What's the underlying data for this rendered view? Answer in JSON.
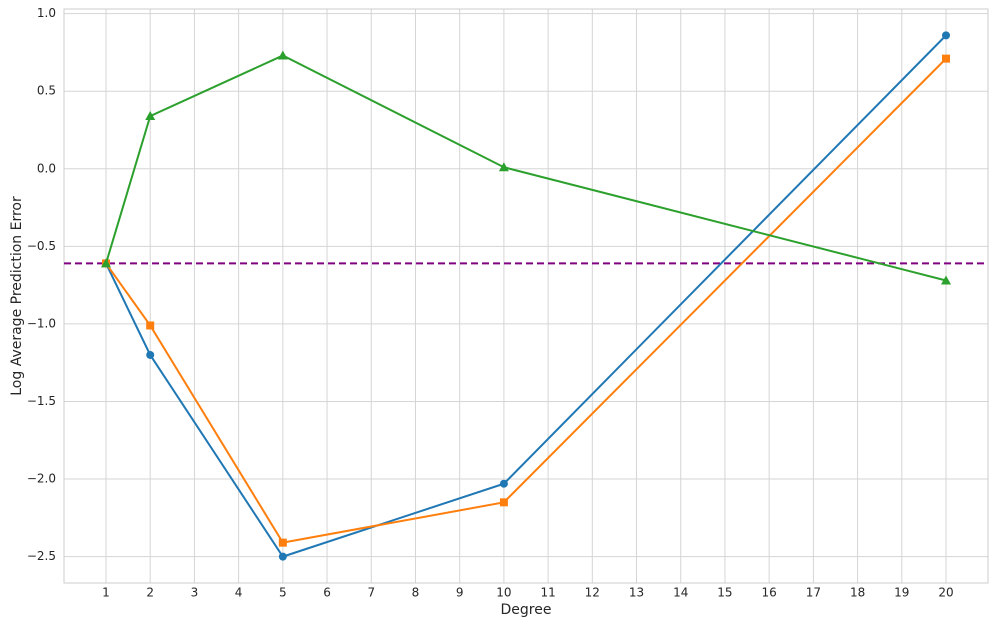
{
  "chart_data": {
    "type": "line",
    "x_label": "Degree",
    "y_label": "Log Average Prediction Error",
    "x": [
      1,
      2,
      5,
      10,
      20
    ],
    "series": [
      {
        "color": "#1f77b4",
        "marker": "circle",
        "values": [
          -0.61,
          -1.2,
          -2.5,
          -2.03,
          0.86
        ]
      },
      {
        "color": "#ff7f0e",
        "marker": "square",
        "values": [
          -0.61,
          -1.01,
          -2.41,
          -2.15,
          0.71
        ]
      },
      {
        "color": "#2ca02c",
        "marker": "triangle",
        "values": [
          -0.61,
          0.34,
          0.73,
          0.01,
          -0.72
        ]
      }
    ],
    "hline": {
      "value": -0.61,
      "color": "#800080",
      "style": "dashed"
    },
    "xlim": [
      0.05,
      20.95
    ],
    "xticks": [
      1,
      2,
      3,
      4,
      5,
      6,
      7,
      8,
      9,
      10,
      11,
      12,
      13,
      14,
      15,
      16,
      17,
      18,
      19,
      20
    ],
    "ylim": [
      -2.67,
      1.03
    ],
    "yticks": [
      {
        "value": -2.5,
        "label": "−2.5"
      },
      {
        "value": -2,
        "label": "−2.0"
      },
      {
        "value": -1.5,
        "label": "−1.5"
      },
      {
        "value": -1,
        "label": "−1.0"
      },
      {
        "value": -0.5,
        "label": "−0.5"
      },
      {
        "value": 0,
        "label": "0.0"
      },
      0.5,
      {
        "value": 1,
        "label": "1.0"
      }
    ],
    "grid": true
  }
}
